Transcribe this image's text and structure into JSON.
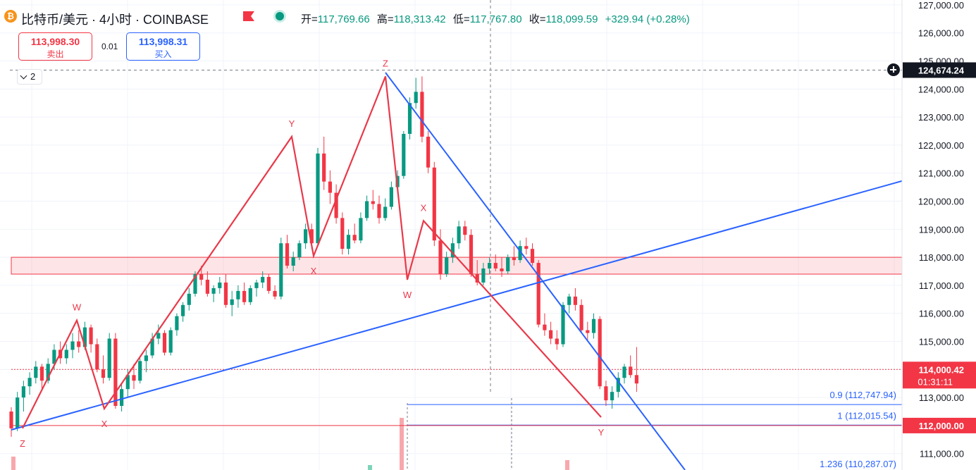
{
  "header": {
    "title": "比特币/美元 · 4小时 · COINBASE",
    "ohlc": {
      "open_label": "开=",
      "open": "117,769.66",
      "high_label": "高=",
      "high": "118,313.42",
      "low_label": "低=",
      "low": "117,767.80",
      "close_label": "收=",
      "close": "118,099.59",
      "change": "+329.94 (+0.28%)"
    }
  },
  "trade": {
    "sell_price": "113,998.30",
    "sell_label": "卖出",
    "spread": "0.01",
    "buy_price": "113,998.31",
    "buy_label": "买入"
  },
  "layers_count": "2",
  "colors": {
    "up": "#089981",
    "down": "#f23645",
    "wave": "#e8394a",
    "trend": "#2962ff"
  },
  "chart_data": {
    "type": "candlestick",
    "y_axis": {
      "ticks": [
        "127,000.00",
        "126,000.00",
        "125,000.00",
        "124,000.00",
        "123,000.00",
        "122,000.00",
        "121,000.00",
        "120,000.00",
        "119,000.00",
        "118,000.00",
        "117,000.00",
        "116,000.00",
        "115,000.00",
        "114,000.00",
        "113,000.00",
        "112,000.00",
        "111,000.00"
      ],
      "range": [
        110380,
        127400
      ]
    },
    "crosshair_price": "124,674.24",
    "current_price": "114,000.42",
    "countdown": "01:31:11",
    "level_label_price": "112,000.00",
    "resistance_zone": [
      117400,
      118000
    ],
    "fib_levels": [
      {
        "label": "0.9 (112,747.94)",
        "price": 112747.94
      },
      {
        "label": "1 (112,015.54)",
        "price": 112015.54
      },
      {
        "label": "1.236 (110,287.07)",
        "price": 110287.07
      }
    ],
    "wave_points": [
      {
        "label": "Z",
        "price": 111900
      },
      {
        "label": "W",
        "price": 115750
      },
      {
        "label": "X",
        "price": 112600
      },
      {
        "label": "Y",
        "price": 122300
      },
      {
        "label": "X",
        "price": 118050
      },
      {
        "label": "Z",
        "price": 124450
      },
      {
        "label": "W",
        "price": 117200
      },
      {
        "label": "X",
        "price": 119300
      },
      {
        "label": "Y",
        "price": 112300
      }
    ],
    "candles": [
      [
        112500,
        112650,
        111600,
        111900
      ],
      [
        111900,
        113200,
        111800,
        113000
      ],
      [
        113000,
        113600,
        112500,
        113400
      ],
      [
        113400,
        113900,
        113100,
        113700
      ],
      [
        113700,
        114300,
        113500,
        114100
      ],
      [
        114100,
        114200,
        113300,
        113600
      ],
      [
        113600,
        114400,
        113500,
        114200
      ],
      [
        114200,
        114900,
        114000,
        114700
      ],
      [
        114700,
        115000,
        114200,
        114400
      ],
      [
        114400,
        114900,
        114200,
        114700
      ],
      [
        114700,
        115300,
        114400,
        115000
      ],
      [
        115000,
        115400,
        114600,
        114800
      ],
      [
        114800,
        115700,
        114700,
        115500
      ],
      [
        115500,
        115600,
        114600,
        114900
      ],
      [
        114900,
        115100,
        113900,
        114000
      ],
      [
        114000,
        114500,
        113500,
        113700
      ],
      [
        113700,
        115300,
        113600,
        115100
      ],
      [
        115100,
        115300,
        112600,
        112700
      ],
      [
        112700,
        113500,
        112500,
        113300
      ],
      [
        113300,
        114000,
        113000,
        113800
      ],
      [
        113800,
        114200,
        113300,
        113600
      ],
      [
        113600,
        114400,
        113500,
        114300
      ],
      [
        114300,
        114700,
        113900,
        114500
      ],
      [
        114500,
        115300,
        114400,
        115100
      ],
      [
        115100,
        115600,
        114900,
        115300
      ],
      [
        115300,
        115400,
        114500,
        114600
      ],
      [
        114600,
        115500,
        114500,
        115400
      ],
      [
        115400,
        116000,
        115200,
        115900
      ],
      [
        115900,
        116400,
        115700,
        116300
      ],
      [
        116300,
        116900,
        116100,
        116700
      ],
      [
        116700,
        117500,
        116600,
        117400
      ],
      [
        117400,
        117700,
        117000,
        117200
      ],
      [
        117200,
        117500,
        116600,
        116700
      ],
      [
        116700,
        117000,
        116400,
        116900
      ],
      [
        116900,
        117300,
        116700,
        117100
      ],
      [
        117100,
        117400,
        116200,
        116300
      ],
      [
        116300,
        116800,
        115900,
        116500
      ],
      [
        116500,
        117000,
        116200,
        116800
      ],
      [
        116800,
        117100,
        116300,
        116400
      ],
      [
        116400,
        117000,
        116300,
        116900
      ],
      [
        116900,
        117200,
        116600,
        117100
      ],
      [
        117100,
        117500,
        116900,
        117300
      ],
      [
        117300,
        117400,
        116700,
        116800
      ],
      [
        116800,
        117000,
        116500,
        116600
      ],
      [
        116600,
        118700,
        116500,
        118500
      ],
      [
        118500,
        118800,
        117600,
        117700
      ],
      [
        117700,
        118200,
        117500,
        118000
      ],
      [
        118000,
        118600,
        117900,
        118500
      ],
      [
        118500,
        119200,
        118300,
        119000
      ],
      [
        119000,
        119200,
        118300,
        118500
      ],
      [
        118500,
        121900,
        118400,
        121700
      ],
      [
        121700,
        122300,
        120400,
        120700
      ],
      [
        120700,
        121100,
        119900,
        120300
      ],
      [
        120300,
        120600,
        119200,
        119400
      ],
      [
        119400,
        119600,
        118100,
        118300
      ],
      [
        118300,
        119000,
        118100,
        118800
      ],
      [
        118800,
        119200,
        118500,
        118600
      ],
      [
        118600,
        119600,
        118500,
        119400
      ],
      [
        119400,
        120200,
        119300,
        120000
      ],
      [
        120000,
        120400,
        119700,
        119900
      ],
      [
        119900,
        120200,
        119200,
        119400
      ],
      [
        119400,
        120100,
        119300,
        119800
      ],
      [
        119800,
        120700,
        119700,
        120500
      ],
      [
        120500,
        121100,
        120300,
        120900
      ],
      [
        120900,
        122500,
        120800,
        122400
      ],
      [
        122400,
        123700,
        122200,
        123500
      ],
      [
        123500,
        124400,
        123300,
        123900
      ],
      [
        123900,
        124450,
        122100,
        122300
      ],
      [
        122300,
        122500,
        121000,
        121200
      ],
      [
        121200,
        121400,
        118400,
        118600
      ],
      [
        118600,
        119000,
        117200,
        117400
      ],
      [
        117400,
        118200,
        117300,
        118000
      ],
      [
        118000,
        118700,
        117800,
        118500
      ],
      [
        118500,
        119300,
        118300,
        119100
      ],
      [
        119100,
        119300,
        118600,
        118800
      ],
      [
        118800,
        119000,
        117300,
        117400
      ],
      [
        117400,
        117900,
        117000,
        117100
      ],
      [
        117100,
        117800,
        117000,
        117600
      ],
      [
        117600,
        118000,
        117400,
        117800
      ],
      [
        117800,
        118100,
        117500,
        117600
      ],
      [
        117600,
        118000,
        117300,
        117500
      ],
      [
        117500,
        118100,
        117400,
        118000
      ],
      [
        118000,
        118400,
        117700,
        117900
      ],
      [
        117900,
        118600,
        117800,
        118400
      ],
      [
        118400,
        118700,
        118100,
        118300
      ],
      [
        118300,
        118500,
        117700,
        117800
      ],
      [
        117800,
        117900,
        115500,
        115600
      ],
      [
        115600,
        116000,
        115200,
        115400
      ],
      [
        115400,
        115700,
        114900,
        115100
      ],
      [
        115100,
        115400,
        114700,
        114900
      ],
      [
        114900,
        116400,
        114800,
        116300
      ],
      [
        116300,
        116700,
        116000,
        116600
      ],
      [
        116600,
        116900,
        116100,
        116300
      ],
      [
        116300,
        116500,
        115300,
        115400
      ],
      [
        115400,
        115700,
        115000,
        115300
      ],
      [
        115300,
        116000,
        115100,
        115800
      ],
      [
        115800,
        115900,
        113300,
        113400
      ],
      [
        113400,
        113600,
        112700,
        112900
      ],
      [
        112900,
        113400,
        112600,
        113200
      ],
      [
        113200,
        113900,
        113000,
        113700
      ],
      [
        113700,
        114200,
        113500,
        114100
      ],
      [
        114100,
        114500,
        113700,
        113800
      ],
      [
        113800,
        114800,
        113200,
        113500
      ]
    ]
  }
}
